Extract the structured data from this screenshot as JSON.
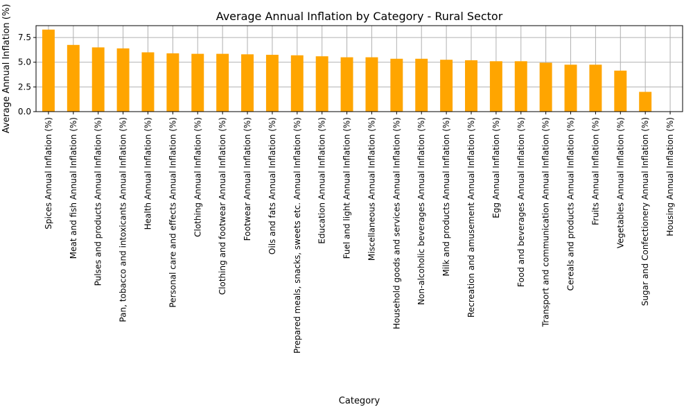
{
  "chart_data": {
    "type": "bar",
    "title": "Average Annual Inflation by Category - Rural Sector",
    "xlabel": "Category",
    "ylabel": "Average Annual Inflation (%)",
    "ylim": [
      0,
      8.7
    ],
    "yticks": [
      0.0,
      2.5,
      5.0,
      7.5
    ],
    "ytick_labels": [
      "0.0",
      "2.5",
      "5.0",
      "7.5"
    ],
    "grid": true,
    "bar_color": "#ffa500",
    "grid_color": "#b0b0b0",
    "categories": [
      "Spices Annual Inflation (%)",
      "Meat and fish Annual Inflation (%)",
      "Pulses and products Annual Inflation (%)",
      "Pan, tobacco and intoxicants Annual Inflation (%)",
      "Health Annual Inflation (%)",
      "Personal care and effects Annual Inflation (%)",
      "Clothing Annual Inflation (%)",
      "Clothing and footwear Annual Inflation (%)",
      "Footwear Annual Inflation (%)",
      "Oils and fats Annual Inflation (%)",
      "Prepared meals, snacks, sweets etc. Annual Inflation (%)",
      "Education Annual Inflation (%)",
      "Fuel and light Annual Inflation (%)",
      "Miscellaneous Annual Inflation (%)",
      "Household goods and services Annual Inflation (%)",
      "Non-alcoholic beverages Annual Inflation (%)",
      "Milk and products Annual Inflation (%)",
      "Recreation and amusement Annual Inflation (%)",
      "Egg Annual Inflation (%)",
      "Food and beverages Annual Inflation (%)",
      "Transport and communication Annual Inflation (%)",
      "Cereals and products Annual Inflation (%)",
      "Fruits Annual Inflation (%)",
      "Vegetables Annual Inflation (%)",
      "Sugar and Confectionery Annual Inflation (%)",
      "Housing Annual Inflation (%)"
    ],
    "values": [
      8.3,
      6.75,
      6.5,
      6.4,
      6.0,
      5.9,
      5.85,
      5.85,
      5.8,
      5.75,
      5.7,
      5.6,
      5.5,
      5.5,
      5.35,
      5.35,
      5.25,
      5.2,
      5.1,
      5.1,
      4.95,
      4.75,
      4.75,
      4.15,
      2.0,
      0.0
    ]
  }
}
